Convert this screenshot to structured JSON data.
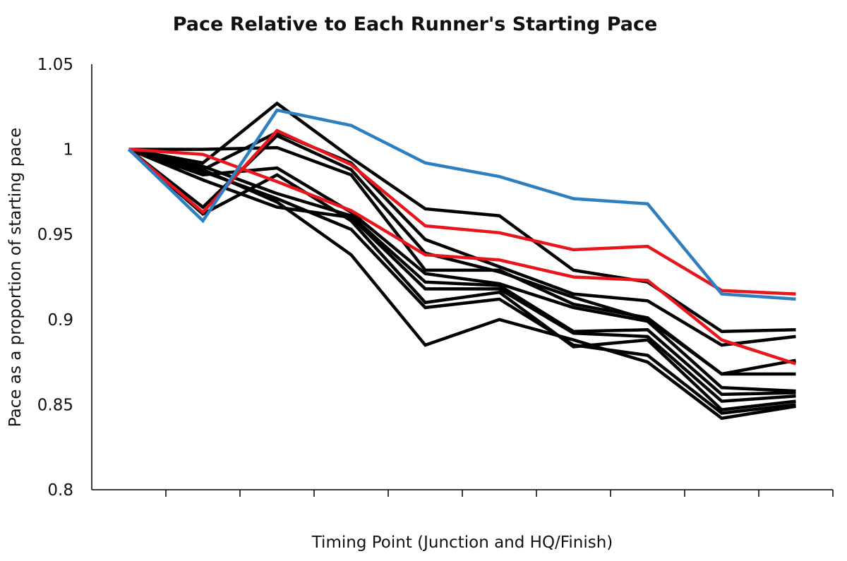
{
  "chart_data": {
    "type": "line",
    "title": "Pace Relative to Each Runner's Starting Pace",
    "xlabel": "Timing Point (Junction and HQ/Finish)",
    "ylabel": "Pace as a proportion of starting pace",
    "ylim": [
      0.8,
      1.05
    ],
    "yticks": [
      "0.8",
      "0.85",
      "0.9",
      "0.95",
      "1",
      "1.05"
    ],
    "x": [
      1,
      2,
      3,
      4,
      5,
      6,
      7,
      8,
      9,
      10
    ],
    "grid": false,
    "legend": "none",
    "colors": {
      "blue": "#2e7fc0",
      "red": "#e8161c",
      "black": "#000000"
    },
    "series": [
      {
        "color": "#000000",
        "values": [
          1,
          0.992,
          1.027,
          0.995,
          0.965,
          0.961,
          0.929,
          0.922,
          0.893,
          0.894
        ]
      },
      {
        "color": "#000000",
        "values": [
          1,
          0.988,
          1.01,
          0.992,
          0.947,
          0.931,
          0.915,
          0.911,
          0.885,
          0.89
        ]
      },
      {
        "color": "#000000",
        "values": [
          1,
          0.966,
          1.008,
          0.988,
          0.939,
          0.928,
          0.913,
          0.9,
          0.868,
          0.876
        ]
      },
      {
        "color": "#000000",
        "values": [
          1,
          1.0,
          1.001,
          0.985,
          0.929,
          0.929,
          0.909,
          0.901,
          0.868,
          0.868
        ]
      },
      {
        "color": "#000000",
        "values": [
          1,
          0.985,
          0.989,
          0.963,
          0.927,
          0.921,
          0.907,
          0.899,
          0.86,
          0.858
        ]
      },
      {
        "color": "#000000",
        "values": [
          1,
          0.99,
          0.974,
          0.961,
          0.922,
          0.92,
          0.893,
          0.894,
          0.856,
          0.857
        ]
      },
      {
        "color": "#000000",
        "values": [
          1,
          0.982,
          0.966,
          0.96,
          0.918,
          0.918,
          0.892,
          0.89,
          0.852,
          0.855
        ]
      },
      {
        "color": "#000000",
        "values": [
          1,
          0.962,
          0.985,
          0.958,
          0.91,
          0.916,
          0.884,
          0.888,
          0.847,
          0.852
        ]
      },
      {
        "color": "#000000",
        "values": [
          1,
          0.987,
          0.971,
          0.953,
          0.907,
          0.912,
          0.885,
          0.879,
          0.845,
          0.85
        ]
      },
      {
        "color": "#000000",
        "values": [
          1,
          0.988,
          0.969,
          0.938,
          0.885,
          0.9,
          0.888,
          0.875,
          0.842,
          0.849
        ]
      },
      {
        "color": "#e8161c",
        "values": [
          1,
          0.997,
          0.981,
          0.964,
          0.938,
          0.935,
          0.925,
          0.923,
          0.888,
          0.874
        ]
      },
      {
        "color": "#e8161c",
        "values": [
          1,
          0.963,
          1.011,
          0.991,
          0.955,
          0.951,
          0.941,
          0.943,
          0.917,
          0.915
        ]
      },
      {
        "color": "#2e7fc0",
        "values": [
          1,
          0.958,
          1.023,
          1.014,
          0.992,
          0.984,
          0.971,
          0.968,
          0.915,
          0.912
        ]
      }
    ]
  }
}
